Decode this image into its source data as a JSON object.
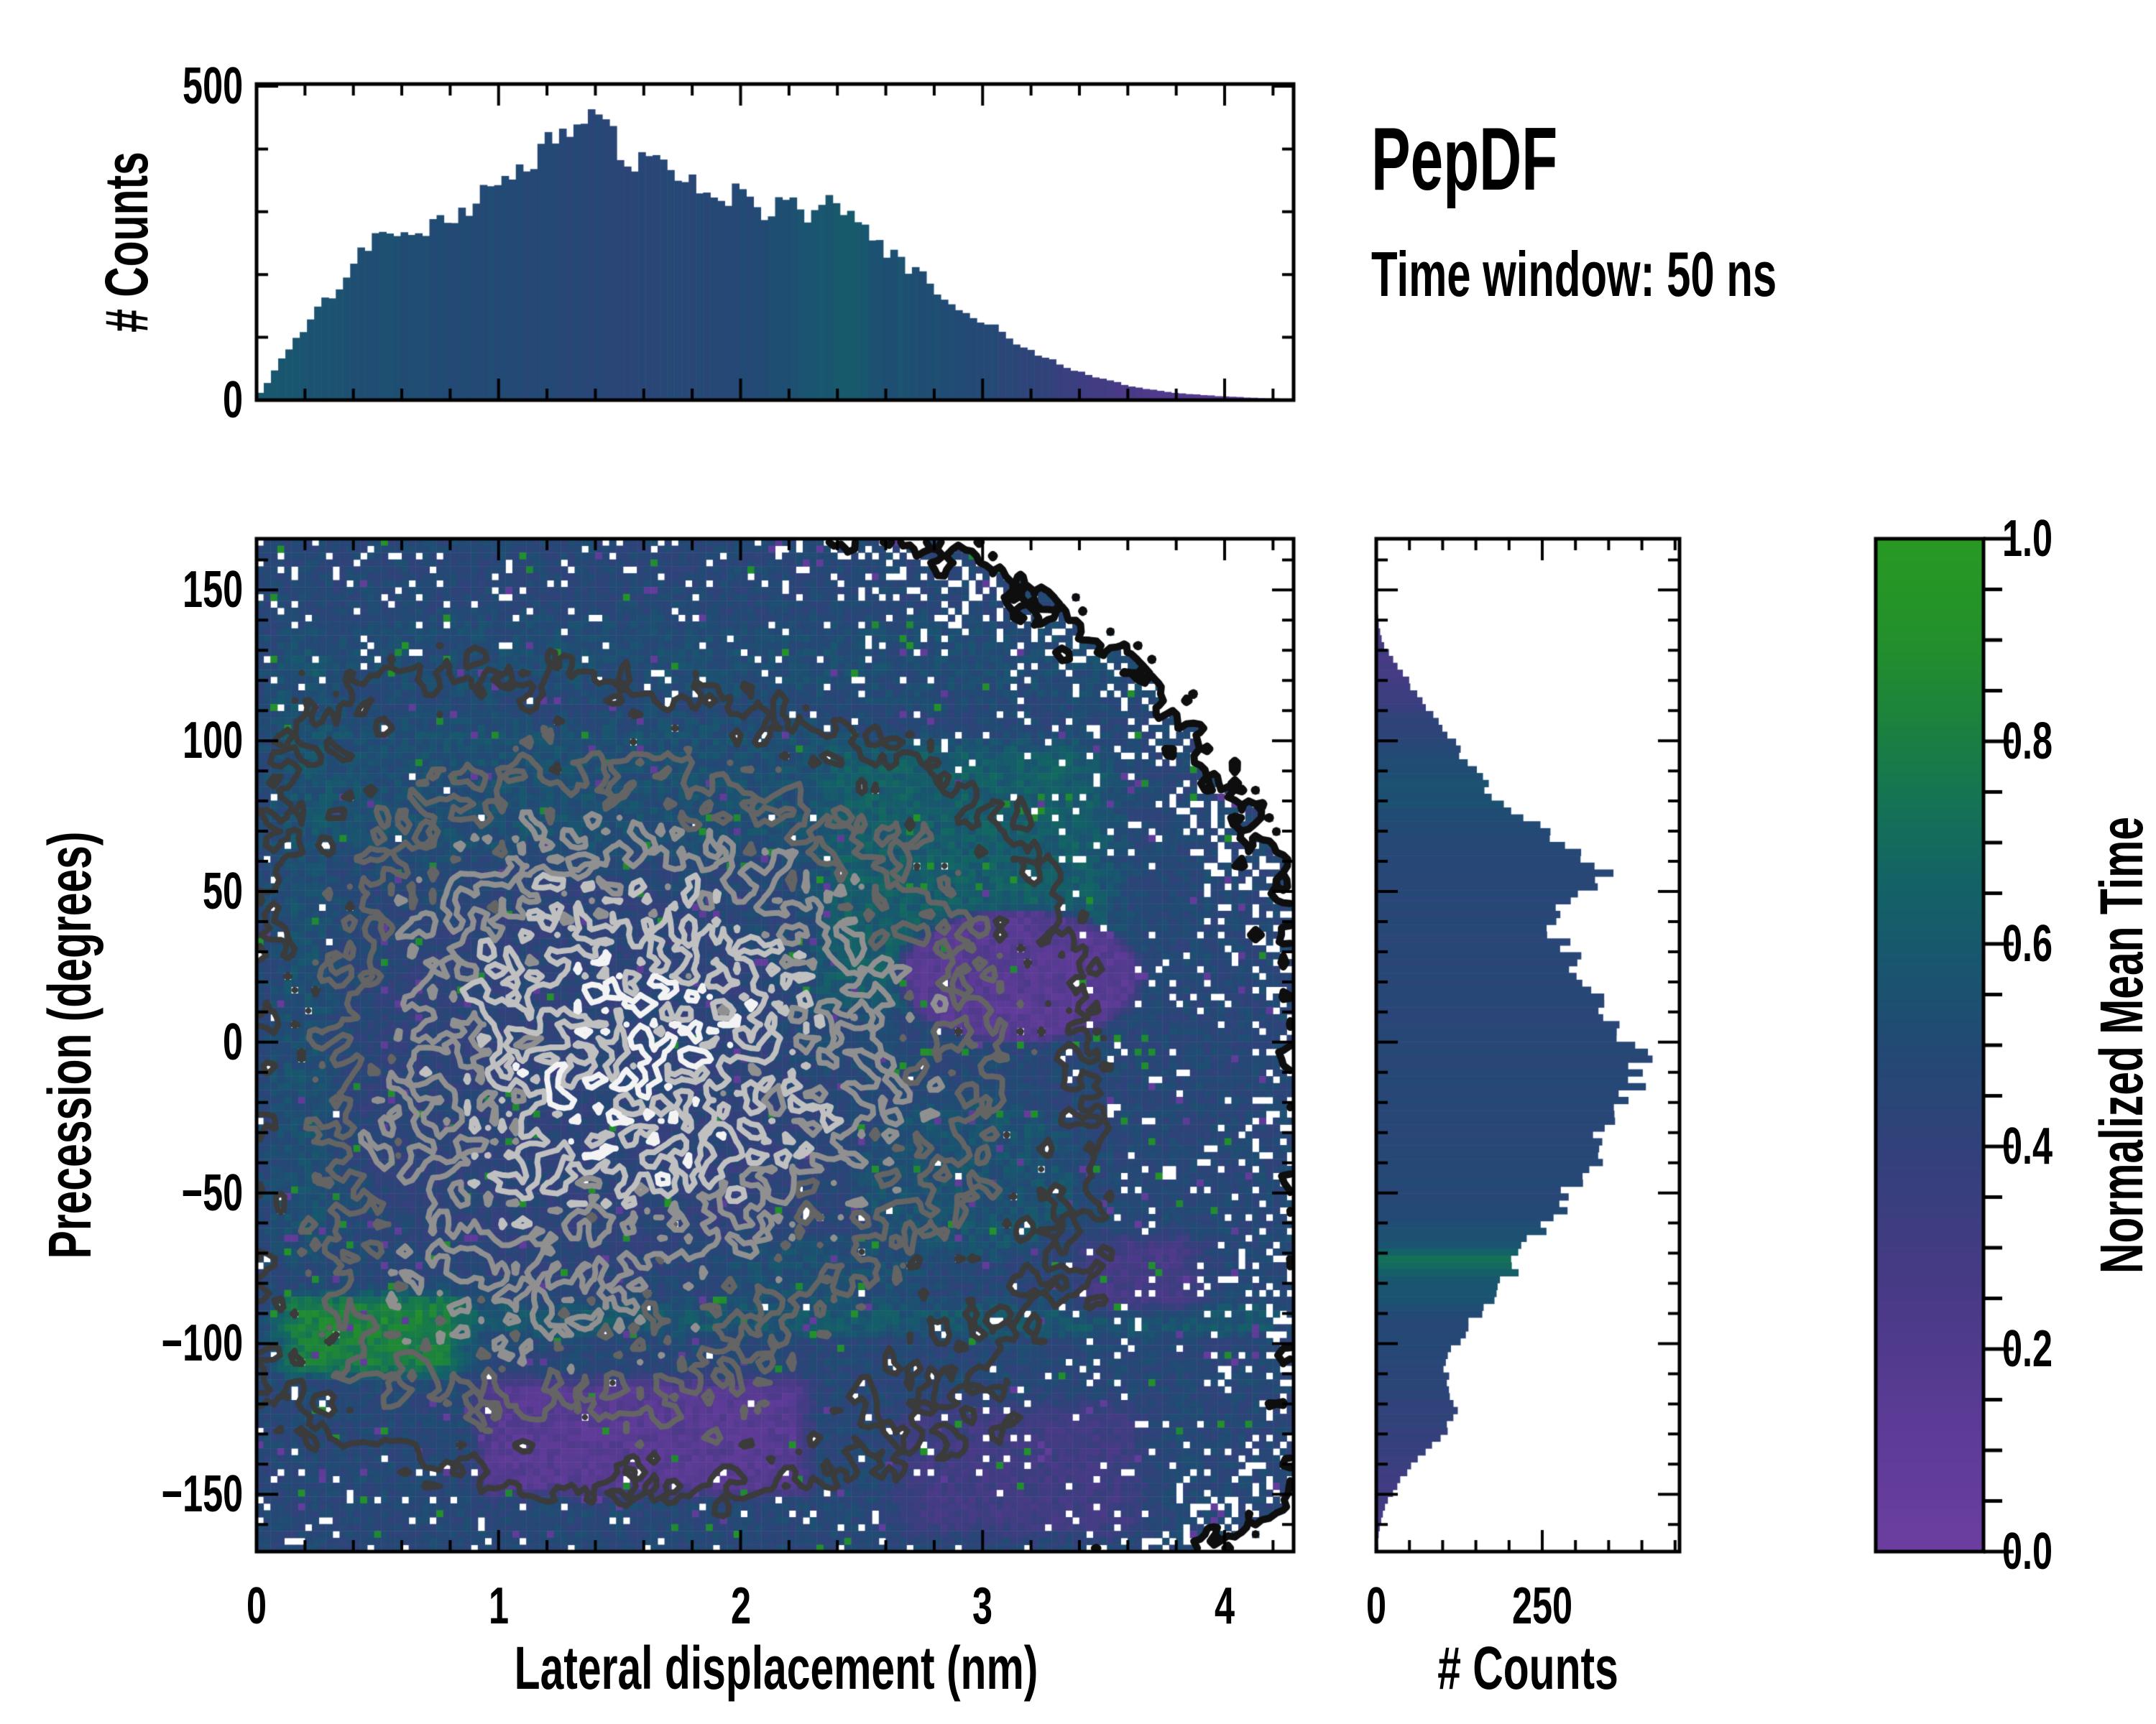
{
  "figure": {
    "title": "PepDF",
    "subtitle": "Time window: 50 ns",
    "background": "#ffffff"
  },
  "render": {
    "seed": 7,
    "occupancy_noise": 0.9,
    "hole_base": 0.12,
    "hole_scale": 5,
    "speckle": 0.025,
    "value_noise": 0.07
  },
  "colormap": {
    "name": "purple-navy-teal-green",
    "stops": [
      [
        0.0,
        "#6b3fa0"
      ],
      [
        0.12,
        "#5d3b97"
      ],
      [
        0.25,
        "#4a3a87"
      ],
      [
        0.38,
        "#35407c"
      ],
      [
        0.5,
        "#224a74"
      ],
      [
        0.58,
        "#19566f"
      ],
      [
        0.66,
        "#136366"
      ],
      [
        0.74,
        "#157355"
      ],
      [
        0.82,
        "#1c823d"
      ],
      [
        0.9,
        "#23902c"
      ],
      [
        1.0,
        "#289a23"
      ]
    ]
  },
  "contours": {
    "level_fractions": [
      0.2,
      0.36,
      0.52,
      0.68,
      0.84
    ],
    "boundary_level": 0.24,
    "colors": [
      "#0e0e0e",
      "#3b3b3b",
      "#646464",
      "#909090",
      "#c0c0c0",
      "#f3f3f3"
    ],
    "widths": [
      10,
      8,
      8,
      8,
      8,
      8
    ]
  },
  "chart_data": [
    {
      "type": "histogram",
      "orientation": "vertical",
      "ylabel": "# Counts",
      "ylim": [
        0,
        500
      ],
      "yticks": {
        "labels": [
          "0",
          "500"
        ],
        "values": [
          0,
          500
        ],
        "minor_step": 100
      },
      "xlim": [
        0,
        4.285
      ],
      "x_minor_step": 0.2,
      "bins": 144,
      "anchors": [
        [
          0.0,
          4
        ],
        [
          0.05,
          30
        ],
        [
          0.1,
          62
        ],
        [
          0.15,
          95
        ],
        [
          0.2,
          115
        ],
        [
          0.25,
          140
        ],
        [
          0.3,
          165
        ],
        [
          0.35,
          185
        ],
        [
          0.4,
          225
        ],
        [
          0.45,
          240
        ],
        [
          0.5,
          255
        ],
        [
          0.55,
          262
        ],
        [
          0.6,
          268
        ],
        [
          0.65,
          262
        ],
        [
          0.7,
          268
        ],
        [
          0.75,
          278
        ],
        [
          0.8,
          288
        ],
        [
          0.85,
          300
        ],
        [
          0.9,
          316
        ],
        [
          0.95,
          330
        ],
        [
          1.0,
          334
        ],
        [
          1.05,
          346
        ],
        [
          1.1,
          362
        ],
        [
          1.15,
          392
        ],
        [
          1.2,
          408
        ],
        [
          1.25,
          426
        ],
        [
          1.3,
          438
        ],
        [
          1.35,
          455
        ],
        [
          1.4,
          448
        ],
        [
          1.45,
          430
        ],
        [
          1.5,
          400
        ],
        [
          1.55,
          372
        ],
        [
          1.6,
          388
        ],
        [
          1.65,
          394
        ],
        [
          1.7,
          360
        ],
        [
          1.75,
          340
        ],
        [
          1.8,
          340
        ],
        [
          1.85,
          344
        ],
        [
          1.9,
          330
        ],
        [
          1.95,
          310
        ],
        [
          2.0,
          345
        ],
        [
          2.05,
          318
        ],
        [
          2.1,
          302
        ],
        [
          2.15,
          312
        ],
        [
          2.2,
          310
        ],
        [
          2.25,
          298
        ],
        [
          2.3,
          294
        ],
        [
          2.35,
          330
        ],
        [
          2.4,
          310
        ],
        [
          2.45,
          290
        ],
        [
          2.5,
          274
        ],
        [
          2.55,
          256
        ],
        [
          2.6,
          238
        ],
        [
          2.65,
          224
        ],
        [
          2.7,
          212
        ],
        [
          2.75,
          196
        ],
        [
          2.8,
          180
        ],
        [
          2.85,
          165
        ],
        [
          2.9,
          152
        ],
        [
          2.95,
          140
        ],
        [
          3.0,
          126
        ],
        [
          3.05,
          114
        ],
        [
          3.1,
          102
        ],
        [
          3.15,
          92
        ],
        [
          3.2,
          82
        ],
        [
          3.25,
          70
        ],
        [
          3.3,
          60
        ],
        [
          3.35,
          52
        ],
        [
          3.4,
          44
        ],
        [
          3.45,
          38
        ],
        [
          3.5,
          33
        ],
        [
          3.55,
          28
        ],
        [
          3.6,
          24
        ],
        [
          3.65,
          20
        ],
        [
          3.7,
          17
        ],
        [
          3.75,
          14
        ],
        [
          3.8,
          12
        ],
        [
          3.85,
          10
        ],
        [
          3.9,
          8
        ],
        [
          3.95,
          7
        ],
        [
          4.0,
          6
        ],
        [
          4.05,
          5
        ],
        [
          4.1,
          4
        ],
        [
          4.15,
          3
        ],
        [
          4.2,
          3
        ],
        [
          4.25,
          2
        ]
      ],
      "color_value_anchors": [
        [
          0,
          0.6
        ],
        [
          0.3,
          0.55
        ],
        [
          0.6,
          0.52
        ],
        [
          0.9,
          0.5
        ],
        [
          1.2,
          0.47
        ],
        [
          1.5,
          0.46
        ],
        [
          1.8,
          0.47
        ],
        [
          2.1,
          0.5
        ],
        [
          2.3,
          0.56
        ],
        [
          2.45,
          0.6
        ],
        [
          2.6,
          0.55
        ],
        [
          2.8,
          0.52
        ],
        [
          3.0,
          0.48
        ],
        [
          3.2,
          0.42
        ],
        [
          3.4,
          0.33
        ],
        [
          3.6,
          0.25
        ],
        [
          3.8,
          0.2
        ],
        [
          4.0,
          0.16
        ],
        [
          4.28,
          0.13
        ]
      ]
    },
    {
      "type": "2d_histogram_heatmap_with_contours",
      "xlabel": "Lateral displacement (nm)",
      "ylabel": "Precession (degrees)",
      "xlim": [
        0,
        4.285
      ],
      "ylim": [
        -169,
        167
      ],
      "xticks": {
        "labels": [
          "0",
          "1",
          "2",
          "3",
          "4"
        ],
        "values": [
          0,
          1,
          2,
          3,
          4
        ],
        "minor_step": 0.2
      },
      "yticks": {
        "labels": [
          "150",
          "100",
          "50",
          "0",
          "−50",
          "−100",
          "−150"
        ],
        "values": [
          150,
          100,
          50,
          0,
          -50,
          -100,
          -150
        ],
        "minor_step": 10
      },
      "grid": {
        "nx": 150,
        "ny": 147
      },
      "colorbar": {
        "label": "Normalized Mean Time",
        "tick_labels": [
          "1.0",
          "0.8",
          "0.6",
          "0.4",
          "0.2",
          "0.0"
        ],
        "tick_values": [
          1.0,
          0.8,
          0.6,
          0.4,
          0.2,
          0.0
        ],
        "minor_step": 0.05,
        "range": [
          0.0,
          1.0
        ]
      },
      "density_blobs": [
        {
          "x": 1.35,
          "y": -12,
          "sx": 0.85,
          "sy": 62,
          "a": 10
        },
        {
          "x": 2.0,
          "y": 28,
          "sx": 0.8,
          "sy": 55,
          "a": 6.5
        },
        {
          "x": 1.5,
          "y": -52,
          "sx": 1.15,
          "sy": 55,
          "a": 6
        },
        {
          "x": 0.95,
          "y": 72,
          "sx": 0.85,
          "sy": 48,
          "a": 4.5
        },
        {
          "x": 1.6,
          "y": 5,
          "sx": 1.5,
          "sy": 105,
          "a": 2.2
        },
        {
          "x": 1.45,
          "y": -120,
          "sx": 1.05,
          "sy": 27,
          "a": 3.6
        },
        {
          "x": 0.5,
          "y": -95,
          "sx": 0.55,
          "sy": 30,
          "a": 3.0
        },
        {
          "x": 3.05,
          "y": 18,
          "sx": 0.55,
          "sy": 34,
          "a": 2.4
        },
        {
          "x": 3.0,
          "y": -42,
          "sx": 0.5,
          "sy": 32,
          "a": 2.4
        },
        {
          "x": 2.9,
          "y": 70,
          "sx": 0.45,
          "sy": 30,
          "a": 2.0
        },
        {
          "x": 3.3,
          "y": -135,
          "sx": 0.6,
          "sy": 24,
          "a": 2.2
        },
        {
          "x": 3.55,
          "y": -80,
          "sx": 0.4,
          "sy": 22,
          "a": 1.6
        },
        {
          "x": 0.35,
          "y": 120,
          "sx": 0.5,
          "sy": 26,
          "a": 1.8
        },
        {
          "x": 2.2,
          "y": -152,
          "sx": 0.6,
          "sy": 18,
          "a": 1.6
        }
      ],
      "mean_time_base": 0.47,
      "mean_time_regions": [
        {
          "shape": "ellipse",
          "c": [
            1.3,
            -15
          ],
          "r": [
            1.0,
            75
          ],
          "v": 0.41,
          "w": 0.7
        },
        {
          "shape": "box",
          "x": [
            0,
            2.5
          ],
          "y": [
            55,
            115
          ],
          "v": 0.58,
          "w": 0.55,
          "soft": [
            0.3,
            15
          ]
        },
        {
          "shape": "box",
          "x": [
            2.2,
            3.65
          ],
          "y": [
            5,
            105
          ],
          "v": 0.66,
          "w": 0.8,
          "soft": [
            0.25,
            12
          ]
        },
        {
          "shape": "box",
          "x": [
            0,
            4.3
          ],
          "y": [
            108,
            145
          ],
          "v": 0.55,
          "w": 0.5,
          "soft": [
            0.3,
            10
          ]
        },
        {
          "shape": "box",
          "x": [
            0,
            0.38
          ],
          "y": [
            -80,
            140
          ],
          "v": 0.6,
          "w": 0.5,
          "soft": [
            0.15,
            15
          ]
        },
        {
          "shape": "box",
          "x": [
            0,
            4.3
          ],
          "y": [
            -100,
            -84
          ],
          "v": 0.66,
          "w": 0.6,
          "soft": [
            0.2,
            6
          ]
        },
        {
          "shape": "box",
          "x": [
            0,
            0.95
          ],
          "y": [
            -114,
            -80
          ],
          "v": 0.86,
          "w": 0.85,
          "soft": [
            0.2,
            8
          ]
        },
        {
          "shape": "ellipse",
          "c": [
            3.15,
            22
          ],
          "r": [
            0.55,
            24
          ],
          "v": 0.12,
          "w": 0.92
        },
        {
          "shape": "box",
          "x": [
            0.85,
            2.35
          ],
          "y": [
            -154,
            -108
          ],
          "v": 0.13,
          "w": 0.9,
          "soft": [
            0.15,
            8
          ]
        },
        {
          "shape": "box",
          "x": [
            2.55,
            3.75
          ],
          "y": [
            -168,
            -116
          ],
          "v": 0.24,
          "w": 0.7,
          "soft": [
            0.2,
            10
          ]
        },
        {
          "shape": "box",
          "x": [
            1.7,
            2.5
          ],
          "y": [
            -70,
            -15
          ],
          "v": 0.38,
          "w": 0.45,
          "soft": [
            0.25,
            12
          ]
        },
        {
          "shape": "ellipse",
          "c": [
            2.95,
            -45
          ],
          "r": [
            0.5,
            30
          ],
          "v": 0.6,
          "w": 0.6
        },
        {
          "shape": "box",
          "x": [
            3.3,
            4.0
          ],
          "y": [
            -95,
            -60
          ],
          "v": 0.15,
          "w": 0.6,
          "soft": [
            0.2,
            10
          ]
        },
        {
          "shape": "ellipse",
          "c": [
            2.35,
            -80
          ],
          "r": [
            0.45,
            18
          ],
          "v": 0.58,
          "w": 0.5
        }
      ]
    },
    {
      "type": "histogram",
      "orientation": "horizontal",
      "xlabel": "# Counts",
      "xlim": [
        0,
        457
      ],
      "xticks": {
        "labels": [
          "0",
          "250"
        ],
        "values": [
          0,
          250
        ],
        "minor_step": 50
      },
      "ylim": [
        -169,
        167
      ],
      "y_minor_step": 10,
      "bins": 147,
      "anchors": [
        [
          -164,
          3
        ],
        [
          -160,
          6
        ],
        [
          -156,
          10
        ],
        [
          -152,
          18
        ],
        [
          -148,
          28
        ],
        [
          -144,
          40
        ],
        [
          -140,
          56
        ],
        [
          -136,
          74
        ],
        [
          -132,
          92
        ],
        [
          -128,
          108
        ],
        [
          -124,
          118
        ],
        [
          -120,
          122
        ],
        [
          -116,
          114
        ],
        [
          -112,
          108
        ],
        [
          -108,
          104
        ],
        [
          -104,
          110
        ],
        [
          -100,
          122
        ],
        [
          -96,
          134
        ],
        [
          -92,
          148
        ],
        [
          -88,
          164
        ],
        [
          -84,
          178
        ],
        [
          -80,
          192
        ],
        [
          -76,
          204
        ],
        [
          -72,
          214
        ],
        [
          -68,
          228
        ],
        [
          -64,
          244
        ],
        [
          -60,
          262
        ],
        [
          -56,
          274
        ],
        [
          -52,
          286
        ],
        [
          -48,
          298
        ],
        [
          -44,
          310
        ],
        [
          -40,
          324
        ],
        [
          -36,
          330
        ],
        [
          -32,
          336
        ],
        [
          -28,
          342
        ],
        [
          -24,
          350
        ],
        [
          -20,
          362
        ],
        [
          -16,
          380
        ],
        [
          -12,
          398
        ],
        [
          -8,
          404
        ],
        [
          -4,
          394
        ],
        [
          0,
          384
        ],
        [
          4,
          372
        ],
        [
          8,
          356
        ],
        [
          12,
          342
        ],
        [
          16,
          326
        ],
        [
          20,
          316
        ],
        [
          24,
          306
        ],
        [
          28,
          296
        ],
        [
          32,
          284
        ],
        [
          36,
          272
        ],
        [
          40,
          264
        ],
        [
          44,
          274
        ],
        [
          48,
          290
        ],
        [
          52,
          318
        ],
        [
          56,
          338
        ],
        [
          60,
          322
        ],
        [
          66,
          282
        ],
        [
          72,
          240
        ],
        [
          78,
          200
        ],
        [
          84,
          168
        ],
        [
          90,
          146
        ],
        [
          96,
          128
        ],
        [
          102,
          108
        ],
        [
          108,
          84
        ],
        [
          114,
          66
        ],
        [
          120,
          48
        ],
        [
          126,
          28
        ],
        [
          132,
          10
        ],
        [
          138,
          4
        ],
        [
          150,
          0
        ]
      ],
      "color_value_anchors": [
        [
          -164,
          0.25
        ],
        [
          -150,
          0.3
        ],
        [
          -135,
          0.38
        ],
        [
          -120,
          0.42
        ],
        [
          -105,
          0.46
        ],
        [
          -90,
          0.5
        ],
        [
          -78,
          0.6
        ],
        [
          -72,
          0.72
        ],
        [
          -66,
          0.55
        ],
        [
          -55,
          0.48
        ],
        [
          -30,
          0.46
        ],
        [
          0,
          0.46
        ],
        [
          30,
          0.46
        ],
        [
          50,
          0.46
        ],
        [
          65,
          0.48
        ],
        [
          75,
          0.52
        ],
        [
          85,
          0.55
        ],
        [
          95,
          0.5
        ],
        [
          110,
          0.38
        ],
        [
          125,
          0.28
        ],
        [
          145,
          0.3
        ]
      ]
    }
  ]
}
